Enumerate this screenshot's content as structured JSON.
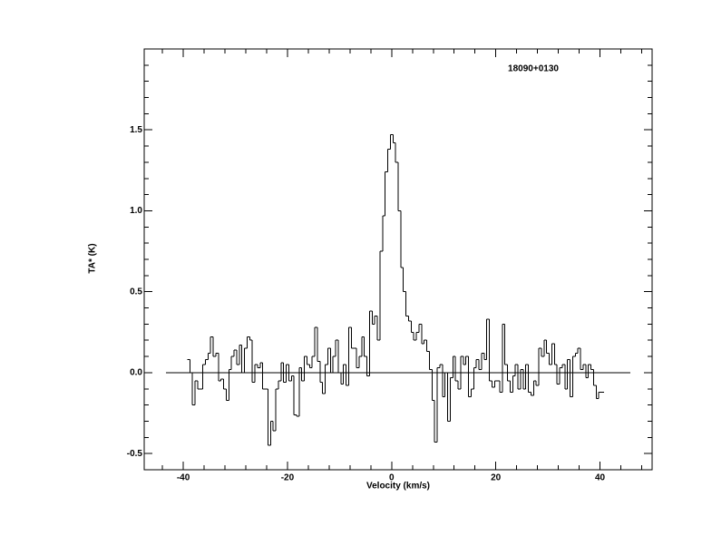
{
  "chart_data": {
    "type": "step",
    "title": "18090+0130",
    "xlabel": "Velocity (km/s)",
    "ylabel": "TA* (K)",
    "color": "#000000",
    "xlim": [
      -47.5,
      50
    ],
    "ylim": [
      -0.6,
      2.0
    ],
    "xticks": [
      -40,
      -20,
      0,
      20,
      40
    ],
    "yticks": [
      {
        "value": -0.5,
        "label": "-0.5"
      },
      {
        "value": 0,
        "label": "0.0"
      },
      {
        "value": 0.5,
        "label": "0.5"
      },
      {
        "value": 1,
        "label": "1.0"
      },
      {
        "value": 1.5,
        "label": "1.5"
      }
    ],
    "xminorticks": [
      -44,
      -36,
      -32,
      -28,
      -24,
      -16,
      -12,
      -8,
      -4,
      4,
      8,
      12,
      16,
      24,
      28,
      32,
      36,
      44,
      48
    ],
    "yminorticks": [
      -0.4,
      -0.3,
      -0.2,
      -0.1,
      0.1,
      0.2,
      0.3,
      0.4,
      0.6,
      0.7,
      0.8,
      0.9,
      1.1,
      1.2,
      1.3,
      1.4,
      1.6,
      1.7,
      1.8,
      1.9
    ],
    "baseline": 0,
    "baseline_xlim": [
      -43.3,
      45.8
    ],
    "x": [
      -39,
      -38.5,
      -38,
      -37.5,
      -37,
      -36.5,
      -36,
      -35.5,
      -35,
      -34.5,
      -34,
      -33.5,
      -33,
      -32.5,
      -32,
      -31.5,
      -31,
      -30.5,
      -30,
      -29.5,
      -29,
      -28.5,
      -28,
      -27.5,
      -27,
      -26.5,
      -26,
      -25.5,
      -25,
      -24.5,
      -24,
      -23.5,
      -23,
      -22.5,
      -22,
      -21.5,
      -21,
      -20.5,
      -20,
      -19.5,
      -19,
      -18.5,
      -18,
      -17.5,
      -17,
      -16.5,
      -16,
      -15.5,
      -15,
      -14.5,
      -14,
      -13.5,
      -13,
      -12.5,
      -12,
      -11.5,
      -11,
      -10.5,
      -10,
      -9.5,
      -9,
      -8.5,
      -8,
      -7.5,
      -7,
      -6.5,
      -6,
      -5.5,
      -5,
      -4.5,
      -4,
      -3.5,
      -3,
      -2.5,
      -2,
      -1.5,
      -1,
      -0.5,
      0,
      0.5,
      1,
      1.5,
      2,
      2.5,
      3,
      3.5,
      4,
      4.5,
      5,
      5.5,
      6,
      6.5,
      7,
      7.5,
      8,
      8.5,
      9,
      9.5,
      10,
      10.5,
      11,
      11.5,
      12,
      12.5,
      13,
      13.5,
      14,
      14.5,
      15,
      15.5,
      16,
      16.5,
      17,
      17.5,
      18,
      18.5,
      19,
      19.5,
      20,
      20.5,
      21,
      21.5,
      22,
      22.5,
      23,
      23.5,
      24,
      24.5,
      25,
      25.5,
      26,
      26.5,
      27,
      27.5,
      28,
      28.5,
      29,
      29.5,
      30,
      30.5,
      31,
      31.5,
      32,
      32.5,
      33,
      33.5,
      34,
      34.5,
      35,
      35.5,
      36,
      36.5,
      37,
      37.5,
      38,
      38.5,
      39,
      39.5,
      40,
      40.5
    ],
    "values": [
      0.08,
      0.0,
      -0.2,
      -0.05,
      -0.1,
      -0.1,
      0.05,
      0.08,
      0.12,
      0.22,
      0.1,
      0.12,
      -0.05,
      -0.04,
      -0.1,
      -0.17,
      0.02,
      0.1,
      0.14,
      0.05,
      0.17,
      0.0,
      0.15,
      0.22,
      0.2,
      -0.06,
      0.05,
      0.03,
      0.06,
      -0.1,
      -0.1,
      -0.45,
      -0.3,
      -0.36,
      -0.1,
      -0.05,
      0.06,
      -0.06,
      0.05,
      -0.05,
      -0.02,
      -0.26,
      -0.27,
      0.03,
      -0.05,
      0.1,
      0.05,
      0.03,
      0.1,
      0.28,
      0.07,
      -0.06,
      -0.13,
      0.05,
      0.15,
      0.0,
      0.1,
      0.2,
      0.0,
      -0.07,
      0.05,
      -0.08,
      0.28,
      0.15,
      0.15,
      0.03,
      0.1,
      0.22,
      0.1,
      -0.02,
      0.38,
      0.3,
      0.35,
      0.2,
      0.75,
      0.97,
      1.24,
      1.38,
      1.47,
      1.42,
      1.3,
      1.0,
      0.65,
      0.5,
      0.35,
      0.32,
      0.25,
      0.2,
      0.25,
      0.3,
      0.18,
      0.2,
      0.13,
      0.02,
      -0.17,
      -0.43,
      0.03,
      0.05,
      -0.15,
      0.0,
      -0.3,
      -0.03,
      0.1,
      -0.05,
      -0.1,
      0.1,
      0.05,
      0.1,
      -0.15,
      -0.1,
      0.03,
      0.08,
      0.02,
      0.12,
      0.08,
      0.33,
      -0.05,
      -0.09,
      -0.05,
      -0.05,
      -0.12,
      0.3,
      0.05,
      -0.05,
      -0.12,
      -0.02,
      0.05,
      -0.1,
      0.02,
      -0.1,
      0.05,
      -0.12,
      -0.14,
      -0.05,
      -0.08,
      0.15,
      0.1,
      0.2,
      0.12,
      0.05,
      0.18,
      0.05,
      -0.07,
      0.03,
      0.05,
      -0.1,
      0.08,
      -0.15,
      0.1,
      0.12,
      0.15,
      0.02,
      0.05,
      -0.03,
      0.05,
      0.02,
      -0.08,
      -0.16,
      -0.12,
      -0.12
    ]
  }
}
